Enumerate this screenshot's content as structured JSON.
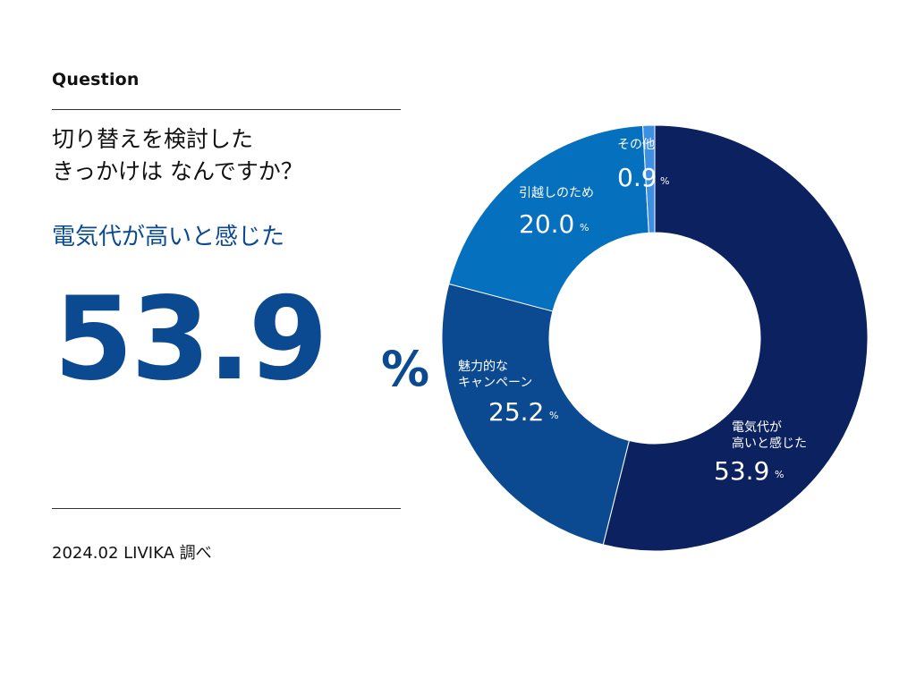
{
  "header": {
    "label": "Question"
  },
  "question": {
    "line1": "切り替えを検討した",
    "line2": "きっかけは なんですか？"
  },
  "highlight": {
    "label": "電気代が高いと感じた",
    "value": "53.9",
    "unit": "%"
  },
  "source": "2024.02 LIVIKA 調べ",
  "chart_data": {
    "type": "pie",
    "donut": true,
    "start": "12 o'clock",
    "direction": "clockwise",
    "slices": [
      {
        "label_lines": [
          "電気代が",
          "高いと感じた"
        ],
        "value": 53.9,
        "display": "53.9",
        "unit": "%",
        "color": "#0b2160"
      },
      {
        "label_lines": [
          "魅力的な",
          "キャンペーン"
        ],
        "value": 25.2,
        "display": "25.2",
        "unit": "%",
        "color": "#0b4a91"
      },
      {
        "label_lines": [
          "引越しのため"
        ],
        "value": 20.0,
        "display": "20.0",
        "unit": "%",
        "color": "#0570bd"
      },
      {
        "label_lines": [
          "その他"
        ],
        "value": 0.9,
        "display": "0.9",
        "unit": "%",
        "color": "#3d8fe3"
      }
    ]
  }
}
